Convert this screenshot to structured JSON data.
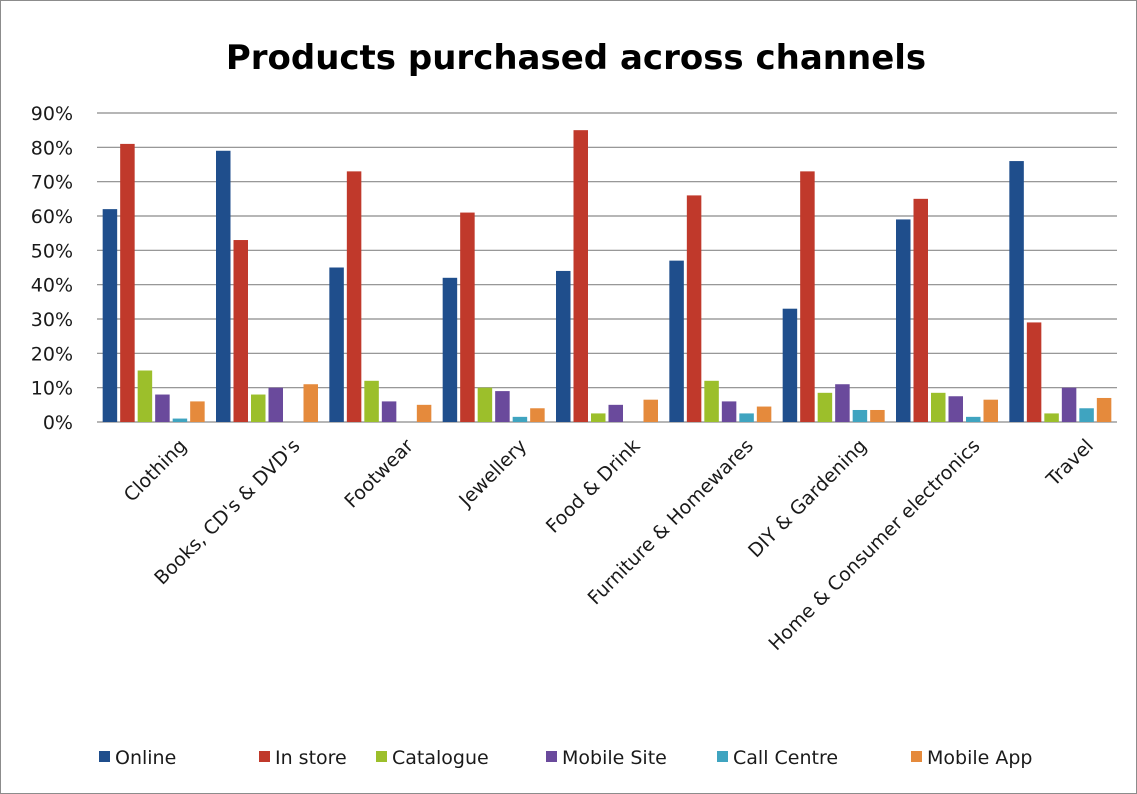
{
  "chart_data": {
    "type": "bar",
    "title": "Products purchased across channels",
    "xlabel": "",
    "ylabel": "",
    "ylim": [
      0,
      90
    ],
    "yticks": [
      "0%",
      "10%",
      "20%",
      "30%",
      "40%",
      "50%",
      "60%",
      "70%",
      "80%",
      "90%"
    ],
    "grid": true,
    "legend": "bottom",
    "categories": [
      "Clothing",
      "Books, CD's & DVD's",
      "Footwear",
      "Jewellery",
      "Food & Drink",
      "Furniture & Homewares",
      "DIY & Gardening",
      "Home & Consumer electronics",
      "Travel"
    ],
    "series": [
      {
        "name": "Online",
        "color": "#1f4e8c",
        "values": [
          62,
          79,
          45,
          42,
          44,
          47,
          33,
          59,
          76
        ]
      },
      {
        "name": "In store",
        "color": "#c0392b",
        "values": [
          81,
          53,
          73,
          61,
          85,
          66,
          73,
          65,
          29
        ]
      },
      {
        "name": "Catalogue",
        "color": "#9cbf2b",
        "values": [
          15,
          8,
          12,
          10,
          2.5,
          12,
          8.5,
          8.5,
          2.5
        ]
      },
      {
        "name": "Mobile Site",
        "color": "#6a4a9c",
        "values": [
          8,
          10,
          6,
          9,
          5,
          6,
          11,
          7.5,
          10
        ]
      },
      {
        "name": "Call Centre",
        "color": "#3fa4c0",
        "values": [
          1,
          0,
          0,
          1.5,
          0,
          2.5,
          3.5,
          1.5,
          4
        ]
      },
      {
        "name": "Mobile App",
        "color": "#e58a3c",
        "values": [
          6,
          11,
          5,
          4,
          6.5,
          4.5,
          3.5,
          6.5,
          7
        ]
      }
    ]
  }
}
